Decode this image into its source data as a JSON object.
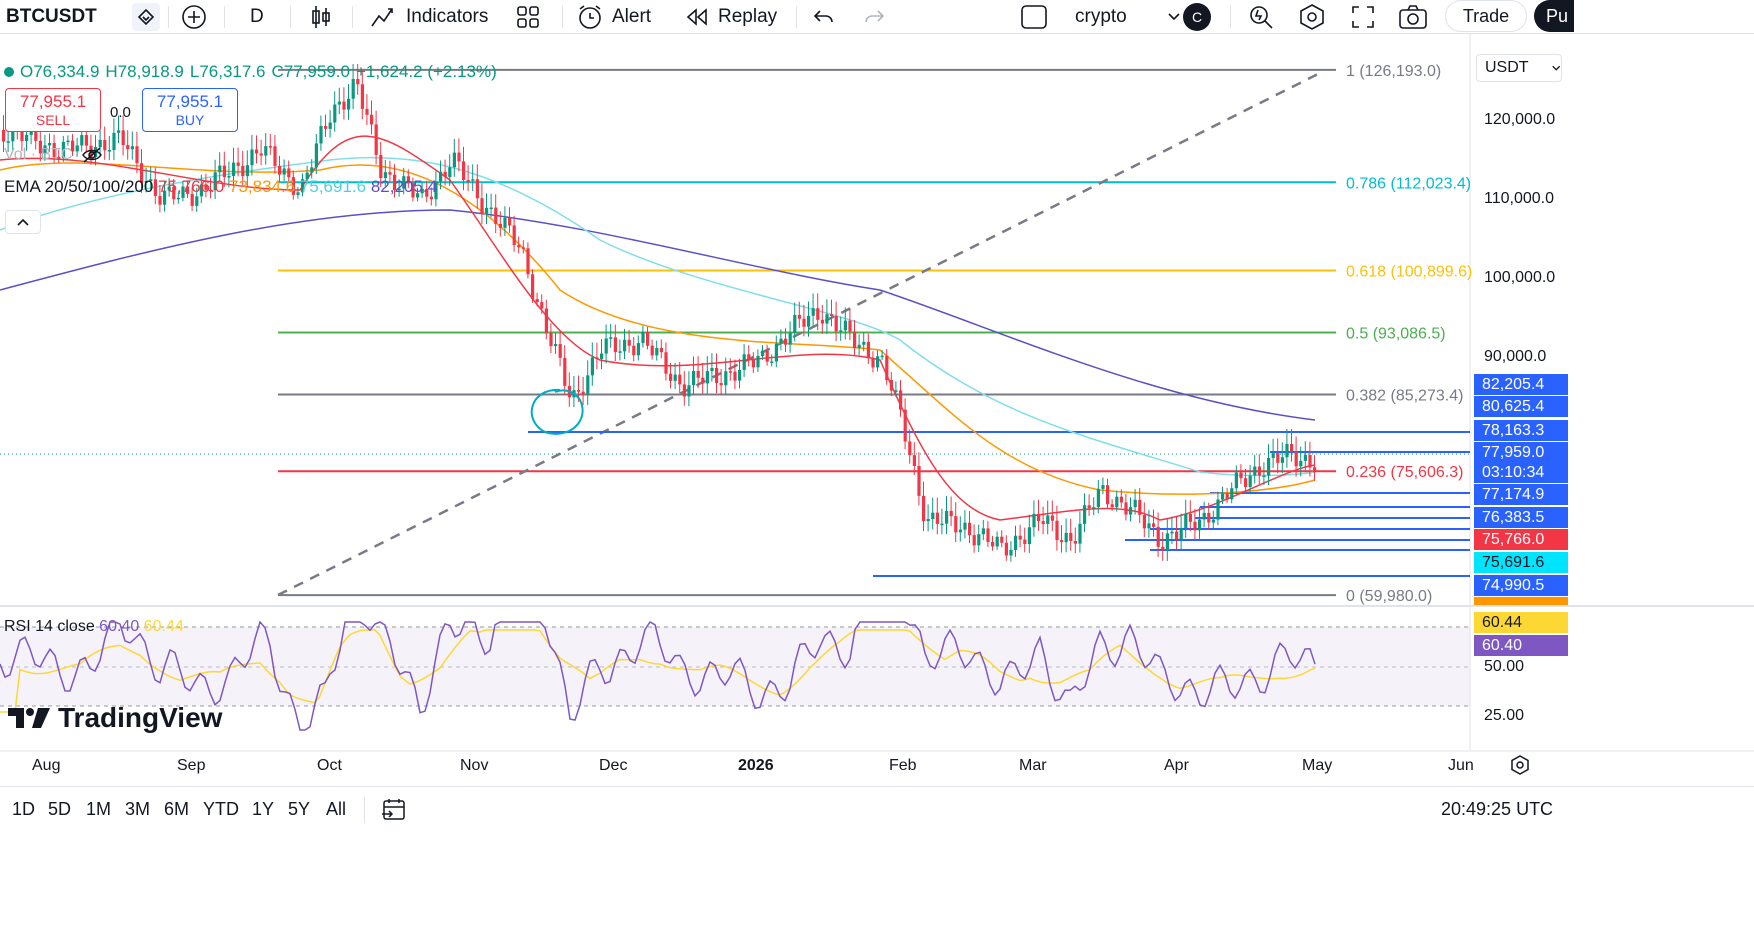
{
  "toolbar": {
    "symbol": "BTCUSDT",
    "interval": "D",
    "indicators_label": "Indicators",
    "alert_label": "Alert",
    "replay_label": "Replay",
    "layout_name": "crypto",
    "avatar_letter": "C",
    "trade_label": "Trade",
    "publish_label": "Pu"
  },
  "legend": {
    "o": "O76,334.9",
    "h": "H78,918.9",
    "l": "L76,317.6",
    "c": "C77,959.0",
    "change": "+1,624.2 (+2.13%)",
    "sell_price": "77,955.1",
    "sell_label": "SELL",
    "spread": "0.0",
    "buy_price": "77,955.1",
    "buy_label": "BUY",
    "vol_label": "Vol · BTC",
    "ema_name": "EMA 20/50/100/200",
    "ema20": "75,766.0",
    "ema50": "73,834.6",
    "ema100": "75,691.6",
    "ema200": "82,205.4",
    "rsi_name": "RSI 14 close",
    "rsi_value": "60.40",
    "rsi_ma": "60.44"
  },
  "colors": {
    "up": "#089981",
    "down": "#f23645",
    "ema20": "#f23645",
    "ema50": "#ff9800",
    "ema100": "#80deea",
    "ema200": "#5b4fc7",
    "rsi": "#7e57c2",
    "rsi_ma": "#fdd835",
    "fib_786": "#00bcd4",
    "fib_618": "#ffc107",
    "fib_5": "#4caf50",
    "fib_382": "#787b86",
    "fib_236": "#f23645",
    "fib_0": "#787b86",
    "fib_1": "#787b86",
    "level_blue": "#2962ff"
  },
  "fib_levels": [
    {
      "label": "1 (126,193.0)",
      "price": 126193.0,
      "color": "#787b86"
    },
    {
      "label": "0.786 (112,023.4)",
      "price": 112023.4,
      "color": "#00bcd4"
    },
    {
      "label": "0.618 (100,899.6)",
      "price": 100899.6,
      "color": "#ffc107"
    },
    {
      "label": "0.5 (93,086.5)",
      "price": 93086.5,
      "color": "#4caf50"
    },
    {
      "label": "0.382 (85,273.4)",
      "price": 85273.4,
      "color": "#787b86"
    },
    {
      "label": "0.236 (75,606.3)",
      "price": 75606.3,
      "color": "#f23645"
    },
    {
      "label": "0 (59,980.0)",
      "price": 59980.0,
      "color": "#787b86"
    }
  ],
  "price_axis": {
    "currency": "USDT",
    "ticks": [
      "120,000.0",
      "110,000.0",
      "100,000.0",
      "90,000.0"
    ],
    "tags": [
      {
        "text": "82,205.4",
        "bg": "#2962ff",
        "fg": "#ffffff"
      },
      {
        "text": "80,625.4",
        "bg": "#2962ff",
        "fg": "#ffffff"
      },
      {
        "text": "78,163.3",
        "bg": "#2962ff",
        "fg": "#ffffff"
      },
      {
        "text": "77,959.0",
        "bg": "#2962ff",
        "fg": "#ffffff"
      },
      {
        "text": "03:10:34",
        "bg": "#2962ff",
        "fg": "#ffffff"
      },
      {
        "text": "77,174.9",
        "bg": "#2962ff",
        "fg": "#ffffff"
      },
      {
        "text": "76,383.5",
        "bg": "#2962ff",
        "fg": "#ffffff"
      },
      {
        "text": "75,766.0",
        "bg": "#f23645",
        "fg": "#ffffff"
      },
      {
        "text": "75,691.6",
        "bg": "#00e5ff",
        "fg": "#131722"
      },
      {
        "text": "74,990.5",
        "bg": "#2962ff",
        "fg": "#ffffff"
      }
    ],
    "rsi_ticks": [
      "50.00",
      "25.00"
    ],
    "rsi_tags": [
      {
        "text": "60.44",
        "bg": "#fdd835",
        "fg": "#131722"
      },
      {
        "text": "60.40",
        "bg": "#7e57c2",
        "fg": "#ffffff"
      }
    ]
  },
  "time_axis": [
    "Aug",
    "Sep",
    "Oct",
    "Nov",
    "Dec",
    "2026",
    "Feb",
    "Mar",
    "Apr",
    "May",
    "Jun"
  ],
  "bottom": {
    "ranges": [
      "1D",
      "5D",
      "1M",
      "3M",
      "6M",
      "YTD",
      "1Y",
      "5Y",
      "All"
    ],
    "clock": "20:49:25 UTC"
  },
  "brand": {
    "name": "TradingView"
  }
}
